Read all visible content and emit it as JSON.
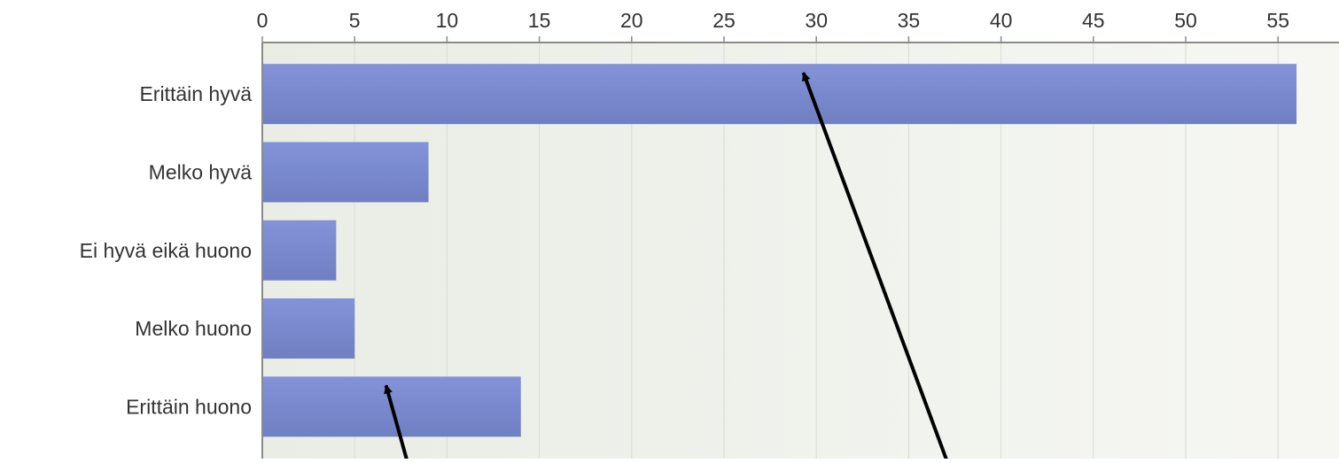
{
  "chart_data": {
    "type": "bar",
    "orientation": "horizontal",
    "categories": [
      "Erittäin hyvä",
      "Melko hyvä",
      "Ei hyvä eikä huono",
      "Melko huono",
      "Erittäin huono"
    ],
    "values": [
      56,
      9,
      4,
      5,
      14
    ],
    "x_ticks": [
      0,
      5,
      10,
      15,
      20,
      25,
      30,
      35,
      40,
      45,
      50,
      55
    ],
    "xlim": [
      0,
      58.3
    ],
    "x_axis_position": "top",
    "grid": true,
    "title": "",
    "xlabel": "",
    "ylabel": "",
    "colors": {
      "bar_top": "#8493d8",
      "bar_bottom": "#6f7fc2",
      "grid": "#d9dcd6",
      "axis": "#8a8a8a",
      "background_left": "#e9ede5",
      "background_right": "#f6f7f3",
      "annotation_arrow": "#000000"
    },
    "annotations": [
      {
        "type": "arrow",
        "points_to_category": "Erittäin hyvä",
        "points_to_value": 29.3
      },
      {
        "type": "arrow",
        "points_to_category": "Erittäin huono",
        "points_to_value": 6.7
      }
    ]
  }
}
